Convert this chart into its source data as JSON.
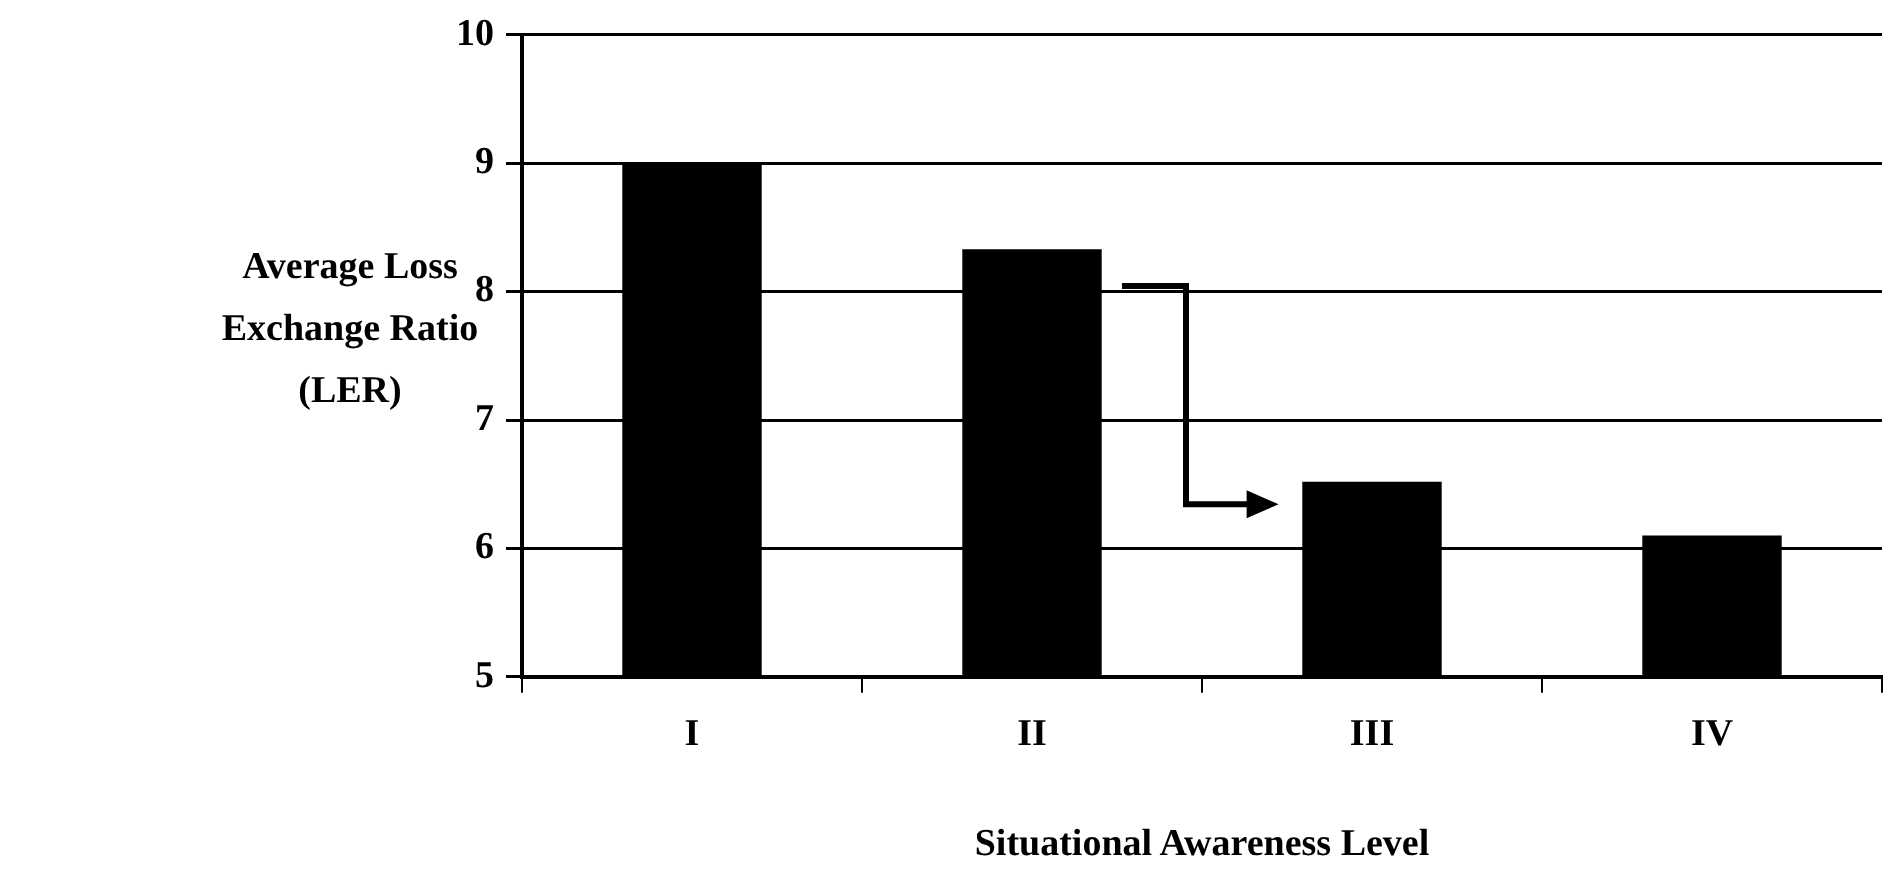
{
  "chart_data": {
    "type": "bar",
    "xlabel": "Situational Awareness Level",
    "ylabel": "Average Loss\nExchange Ratio\n(LER)",
    "categories": [
      "I",
      "II",
      "III",
      "IV"
    ],
    "values": [
      9.0,
      8.33,
      6.52,
      6.1
    ],
    "color": "#000000",
    "ylim": [
      5,
      10
    ],
    "yticks": [
      5,
      6,
      7,
      8,
      9,
      10
    ],
    "grid": "y"
  }
}
